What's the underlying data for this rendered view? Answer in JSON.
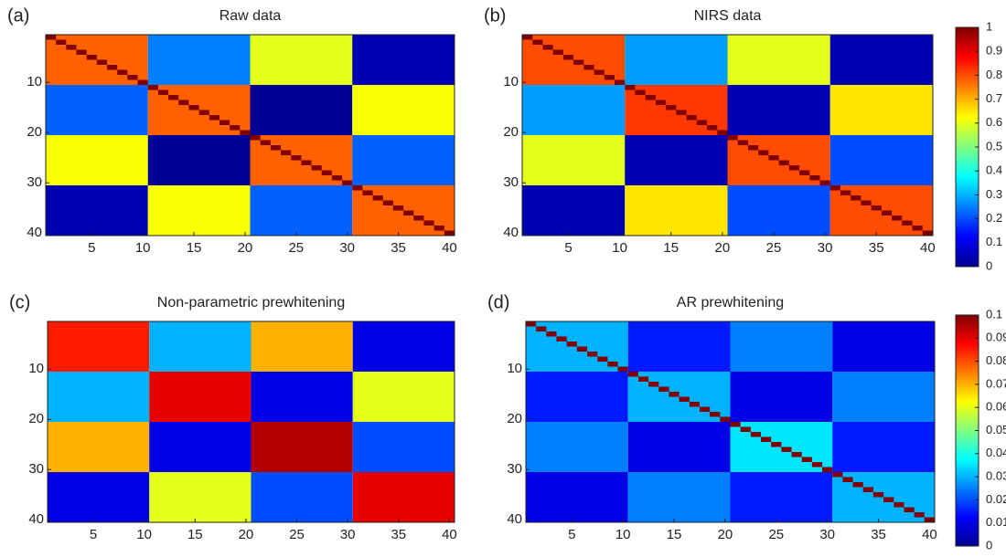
{
  "chart_data": [
    {
      "type": "heatmap",
      "label": "(a)",
      "title": "Raw data",
      "colormap": "jet",
      "xlim": [
        0.5,
        40.5
      ],
      "ylim": [
        40.5,
        0.5
      ],
      "xticks": [
        5,
        10,
        15,
        20,
        25,
        30,
        35,
        40
      ],
      "yticks": [
        10,
        20,
        30,
        40
      ],
      "block_values": [
        [
          0.78,
          0.25,
          0.6,
          0.05
        ],
        [
          0.22,
          0.78,
          0.02,
          0.62
        ],
        [
          0.62,
          0.02,
          0.78,
          0.22
        ],
        [
          0.05,
          0.62,
          0.22,
          0.78
        ]
      ],
      "diagonal": 1,
      "clim": [
        0,
        1
      ]
    },
    {
      "type": "heatmap",
      "label": "(b)",
      "title": "NIRS data",
      "colormap": "jet",
      "xlim": [
        0.5,
        40.5
      ],
      "ylim": [
        40.5,
        0.5
      ],
      "xticks": [
        5,
        10,
        15,
        20,
        25,
        30,
        35,
        40
      ],
      "yticks": [
        10,
        20,
        30,
        40
      ],
      "block_values": [
        [
          0.8,
          0.28,
          0.6,
          0.05
        ],
        [
          0.28,
          0.82,
          0.05,
          0.65
        ],
        [
          0.6,
          0.05,
          0.8,
          0.2
        ],
        [
          0.05,
          0.65,
          0.2,
          0.8
        ]
      ],
      "diagonal": 1,
      "clim": [
        0,
        1
      ],
      "cticks": [
        0,
        0.1,
        0.2,
        0.3,
        0.4,
        0.5,
        0.6,
        0.7,
        0.8,
        0.9,
        1
      ]
    },
    {
      "type": "heatmap",
      "label": "(c)",
      "title": "Non-parametric prewhitening",
      "colormap": "jet",
      "xlim": [
        0.5,
        40.5
      ],
      "ylim": [
        40.5,
        0.5
      ],
      "xticks": [
        5,
        10,
        15,
        20,
        25,
        30,
        35,
        40
      ],
      "yticks": [
        10,
        20,
        30,
        40
      ],
      "block_values": [
        [
          0.085,
          0.03,
          0.07,
          0.01
        ],
        [
          0.03,
          0.09,
          0.01,
          0.06
        ],
        [
          0.07,
          0.01,
          0.095,
          0.02
        ],
        [
          0.01,
          0.06,
          0.02,
          0.09
        ]
      ],
      "clim": [
        0,
        0.1
      ]
    },
    {
      "type": "heatmap",
      "label": "(d)",
      "title": "AR prewhitening",
      "colormap": "jet",
      "xlim": [
        0.5,
        40.5
      ],
      "ylim": [
        40.5,
        0.5
      ],
      "xticks": [
        5,
        10,
        15,
        20,
        25,
        30,
        35,
        40
      ],
      "yticks": [
        10,
        20,
        30,
        40
      ],
      "block_values": [
        [
          0.03,
          0.015,
          0.025,
          0.01
        ],
        [
          0.015,
          0.03,
          0.01,
          0.025
        ],
        [
          0.025,
          0.01,
          0.035,
          0.015
        ],
        [
          0.01,
          0.025,
          0.015,
          0.03
        ]
      ],
      "diagonal": 0.1,
      "clim": [
        0,
        0.1
      ],
      "cticks": [
        0,
        0.01,
        0.02,
        0.03,
        0.04,
        0.05,
        0.06,
        0.07,
        0.08,
        0.09,
        0.1
      ]
    }
  ]
}
